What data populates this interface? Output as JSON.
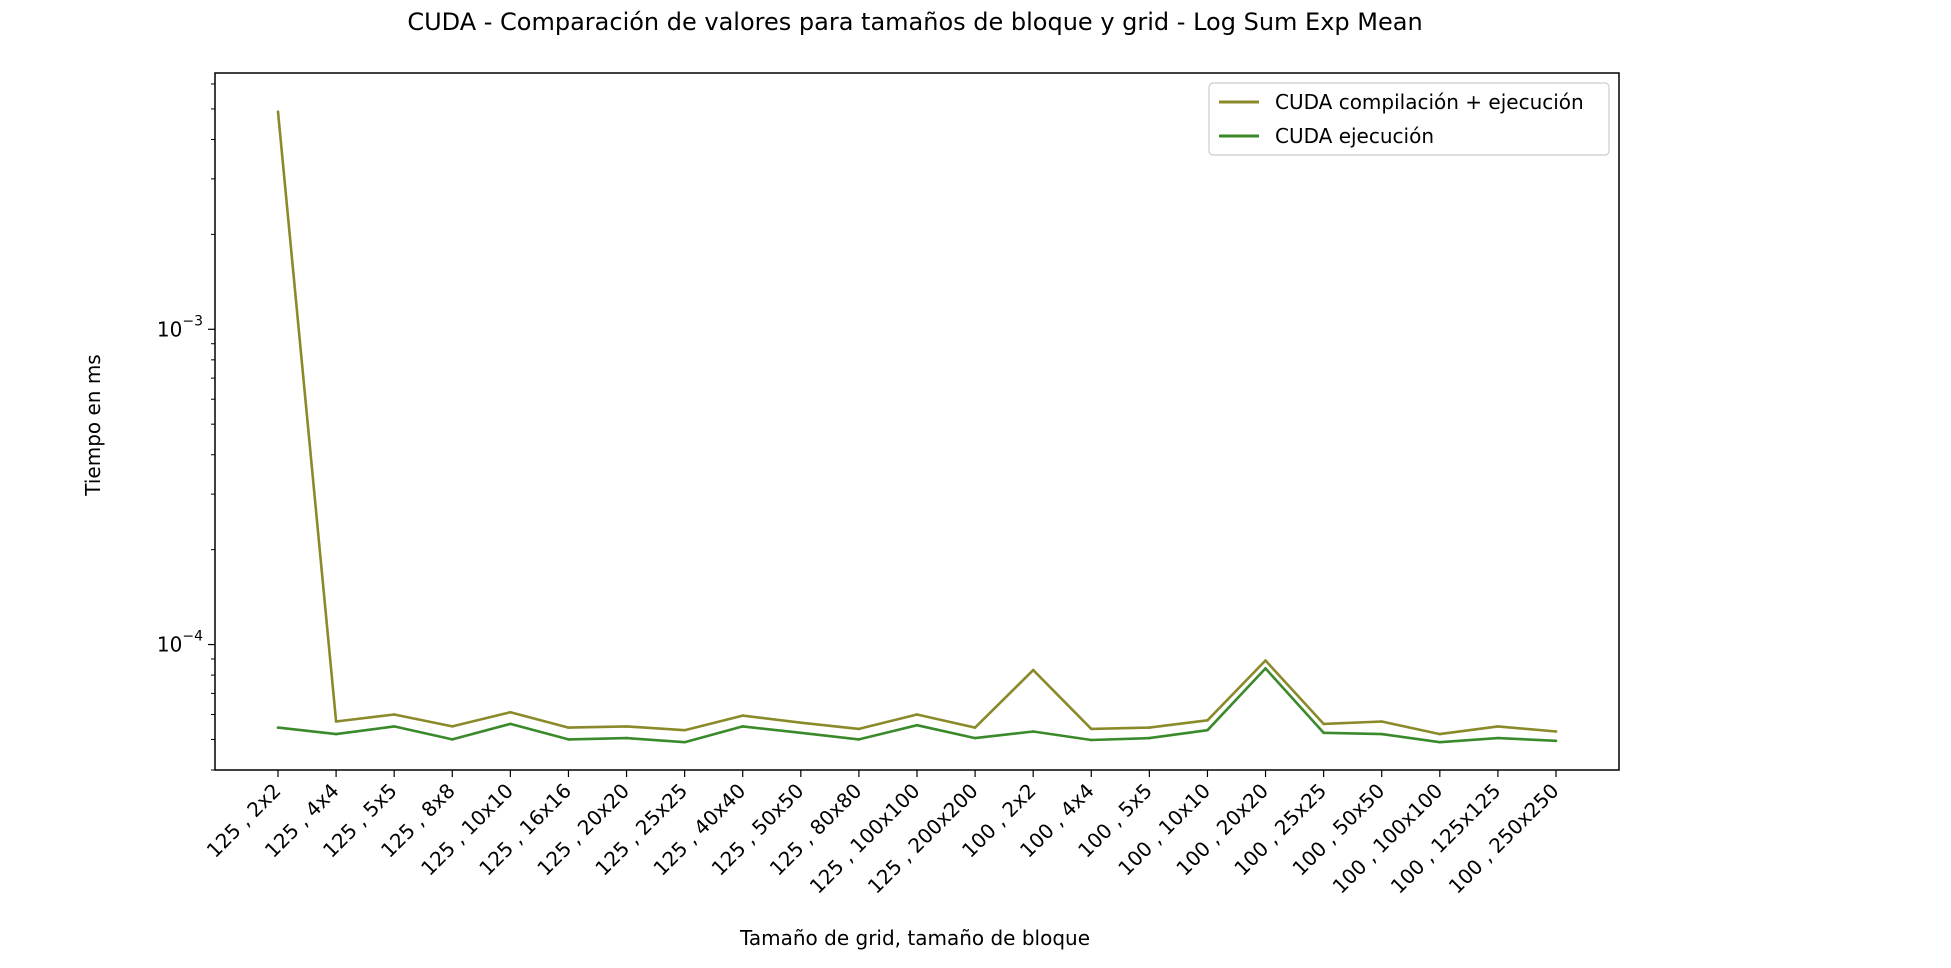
{
  "chart_data": {
    "type": "line",
    "title": "CUDA - Comparación de valores para tamaños de bloque y grid - Log Sum Exp Mean",
    "xlabel": "Tamaño de grid, tamaño de bloque",
    "ylabel": "Tiempo en ms",
    "yscale": "log",
    "ylim": [
      4e-05,
      0.0065
    ],
    "grid": false,
    "legend_position": "top-right",
    "y_tick_labels": [
      {
        "value": 0.001,
        "base": "10",
        "exp": "−3"
      },
      {
        "value": 0.0001,
        "base": "10",
        "exp": "−4"
      }
    ],
    "categories": [
      "125 , 2x2",
      "125 , 4x4",
      "125 , 5x5",
      "125 , 8x8",
      "125 , 10x10",
      "125 , 16x16",
      "125 , 20x20",
      "125 , 25x25",
      "125 , 40x40",
      "125 , 50x50",
      "125 , 80x80",
      "125 , 100x100",
      "125 , 200x200",
      "100 , 2x2",
      "100 , 4x4",
      "100 , 5x5",
      "100 , 10x10",
      "100 , 20x20",
      "100 , 25x25",
      "100 , 50x50",
      "100 , 100x100",
      "100 , 125x125",
      "100 , 250x250"
    ],
    "series": [
      {
        "name": "CUDA compilación + ejecución",
        "color": "#8a8a2b",
        "values": [
          0.0049,
          5.7e-05,
          6e-05,
          5.5e-05,
          6.1e-05,
          5.45e-05,
          5.5e-05,
          5.35e-05,
          5.95e-05,
          5.65e-05,
          5.4e-05,
          6e-05,
          5.45e-05,
          8.3e-05,
          5.4e-05,
          5.45e-05,
          5.75e-05,
          8.9e-05,
          5.6e-05,
          5.7e-05,
          5.2e-05,
          5.5e-05,
          5.3e-05
        ]
      },
      {
        "name": "CUDA ejecución",
        "color": "#3a8a2b",
        "values": [
          5.45e-05,
          5.2e-05,
          5.5e-05,
          5e-05,
          5.6e-05,
          5e-05,
          5.05e-05,
          4.9e-05,
          5.5e-05,
          5.25e-05,
          5e-05,
          5.55e-05,
          5.05e-05,
          5.3e-05,
          4.98e-05,
          5.05e-05,
          5.35e-05,
          8.4e-05,
          5.25e-05,
          5.2e-05,
          4.9e-05,
          5.05e-05,
          4.95e-05
        ]
      }
    ]
  }
}
